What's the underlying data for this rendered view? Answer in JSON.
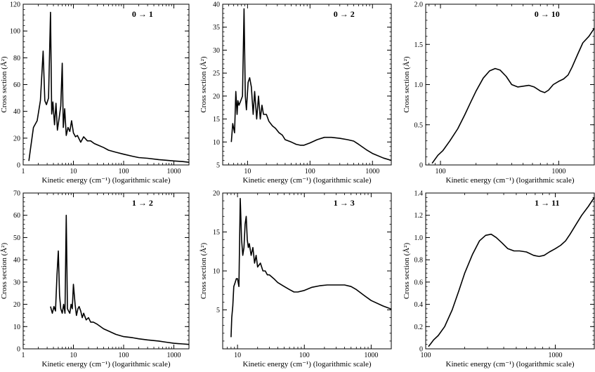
{
  "chart_data": [
    {
      "type": "line",
      "title": "0 → 1",
      "xlabel": "Kinetic energy (cm⁻¹) (logarithmic scale)",
      "ylabel": "Cross section (Å²)",
      "xscale": "log",
      "xlim": [
        1,
        2000
      ],
      "ylim": [
        0,
        120
      ],
      "xticks": [
        1,
        10,
        100,
        1000
      ],
      "yticks": [
        0,
        20,
        40,
        60,
        80,
        100,
        120
      ],
      "xtick_labels": [
        "1",
        "10",
        "100",
        "1000"
      ],
      "ytick_labels": [
        "0",
        "20",
        "40",
        "60",
        "80",
        "100",
        "120"
      ],
      "series": [
        {
          "x": [
            1.3,
            1.4,
            1.6,
            1.9,
            2.2,
            2.5,
            2.7,
            2.9,
            3.2,
            3.5,
            3.7,
            3.9,
            4.2,
            4.5,
            4.8,
            5.2,
            5.6,
            6.0,
            6.3,
            6.7,
            7.2,
            7.8,
            8.5,
            9.2,
            10,
            11,
            12,
            14,
            16,
            19,
            22,
            26,
            30,
            40,
            50,
            70,
            100,
            150,
            200,
            300,
            500,
            700,
            1000,
            1500,
            2000
          ],
          "y": [
            3,
            12,
            28,
            33,
            48,
            85,
            48,
            45,
            50,
            114,
            38,
            47,
            30,
            46,
            26,
            35,
            44,
            76,
            28,
            42,
            22,
            28,
            25,
            33,
            24,
            21,
            22,
            17,
            21,
            18,
            18,
            16,
            15,
            13,
            11,
            9.5,
            8,
            6.5,
            5.5,
            5,
            4,
            3.5,
            3,
            2.5,
            2
          ]
        }
      ],
      "grid": false,
      "legend": "none"
    },
    {
      "type": "line",
      "title": "0 → 2",
      "xlabel": "Kinetic energy (cm⁻¹) (logarithmic scale)",
      "ylabel": "Cross section (Å²)",
      "xscale": "log",
      "xlim": [
        4,
        2000
      ],
      "ylim": [
        5,
        40
      ],
      "xticks": [
        10,
        100,
        1000
      ],
      "yticks": [
        5,
        10,
        15,
        20,
        25,
        30,
        35,
        40
      ],
      "xtick_labels": [
        "10",
        "100",
        "1000"
      ],
      "ytick_labels": [
        "5",
        "10",
        "15",
        "20",
        "25",
        "30",
        "35",
        "40"
      ],
      "series": [
        {
          "x": [
            5.5,
            5.8,
            6.2,
            6.5,
            6.8,
            7.0,
            7.3,
            7.8,
            8.3,
            8.8,
            9.2,
            9.6,
            10.2,
            10.8,
            11.5,
            12.3,
            13,
            14,
            15,
            16,
            17,
            18,
            20,
            22,
            25,
            28,
            32,
            36,
            40,
            50,
            60,
            70,
            80,
            100,
            130,
            170,
            220,
            300,
            400,
            500,
            600,
            800,
            1000,
            1500,
            2000
          ],
          "y": [
            10,
            14,
            12,
            21,
            16,
            19,
            18,
            19,
            20,
            39,
            20,
            17,
            23,
            24,
            22,
            16,
            21,
            15,
            20,
            15,
            18,
            16,
            16,
            14.5,
            13.5,
            13,
            12,
            11.5,
            10.5,
            10,
            9.5,
            9.3,
            9.3,
            9.8,
            10.5,
            11,
            11,
            10.8,
            10.5,
            10.2,
            9.5,
            8.3,
            7.5,
            6.5,
            6
          ]
        }
      ],
      "grid": false,
      "legend": "none"
    },
    {
      "type": "line",
      "title": "0 → 10",
      "xlabel": "Kinetic energy (cm⁻¹) (logarithmic scale)",
      "ylabel": "Cross section (Å²)",
      "xscale": "log",
      "xlim": [
        75,
        2000
      ],
      "ylim": [
        0,
        2.0
      ],
      "xticks": [
        100,
        1000
      ],
      "yticks": [
        0,
        0.5,
        1.0,
        1.5,
        2.0
      ],
      "xtick_labels": [
        "100",
        "1000"
      ],
      "ytick_labels": [
        "0",
        "0.5",
        "1.0",
        "1.5",
        "2.0"
      ],
      "series": [
        {
          "x": [
            85,
            95,
            105,
            120,
            140,
            160,
            180,
            200,
            230,
            260,
            290,
            320,
            360,
            400,
            450,
            500,
            560,
            620,
            700,
            760,
            820,
            900,
            1000,
            1100,
            1200,
            1300,
            1450,
            1600,
            1800,
            2000
          ],
          "y": [
            0.02,
            0.12,
            0.18,
            0.3,
            0.45,
            0.62,
            0.78,
            0.92,
            1.08,
            1.17,
            1.2,
            1.18,
            1.1,
            1.0,
            0.97,
            0.98,
            0.99,
            0.97,
            0.92,
            0.9,
            0.93,
            1.0,
            1.04,
            1.07,
            1.12,
            1.22,
            1.38,
            1.52,
            1.6,
            1.7
          ]
        }
      ],
      "grid": false,
      "legend": "none"
    },
    {
      "type": "line",
      "title": "1 → 2",
      "xlabel": "Kinetic energy (cm⁻¹) (logarithmic scale)",
      "ylabel": "Cross section (Å²)",
      "xscale": "log",
      "xlim": [
        1,
        2000
      ],
      "ylim": [
        0,
        70
      ],
      "xticks": [
        1,
        10,
        100,
        1000
      ],
      "yticks": [
        0,
        10,
        20,
        30,
        40,
        50,
        60,
        70
      ],
      "xtick_labels": [
        "1",
        "10",
        "100",
        "1000"
      ],
      "ytick_labels": [
        "0",
        "10",
        "20",
        "30",
        "40",
        "50",
        "60",
        "70"
      ],
      "series": [
        {
          "x": [
            3.5,
            3.8,
            4.1,
            4.4,
            4.7,
            5.0,
            5.3,
            5.6,
            6.0,
            6.4,
            6.8,
            7.2,
            7.6,
            8.0,
            8.5,
            9.0,
            9.5,
            10,
            10.8,
            11.5,
            12.3,
            13,
            14,
            15,
            16,
            18,
            20,
            22,
            25,
            30,
            40,
            50,
            70,
            100,
            150,
            200,
            300,
            500,
            700,
            1000,
            1500,
            2000
          ],
          "y": [
            19,
            16,
            19,
            17,
            33,
            44,
            24,
            18,
            16,
            20,
            16,
            60,
            18,
            17,
            16,
            20,
            18,
            29,
            20,
            15,
            18,
            19,
            17,
            14,
            16,
            13,
            14,
            12,
            12,
            11,
            9,
            8,
            6.5,
            5.5,
            5,
            4.5,
            4,
            3.5,
            3,
            2.5,
            2.2,
            2
          ]
        }
      ],
      "grid": false,
      "legend": "none"
    },
    {
      "type": "line",
      "title": "1 → 3",
      "xlabel": "Kinetic energy (cm⁻¹) (logarithmic scale)",
      "ylabel": "Cross section (Å²)",
      "xscale": "log",
      "xlim": [
        6,
        2000
      ],
      "ylim": [
        0,
        20
      ],
      "xticks": [
        10,
        100,
        1000
      ],
      "yticks": [
        5,
        10,
        15,
        20
      ],
      "xtick_labels": [
        "10",
        "100",
        "1000"
      ],
      "ytick_labels": [
        "5",
        "10",
        "15",
        "20"
      ],
      "series": [
        {
          "x": [
            8,
            8.2,
            8.5,
            8.8,
            9.2,
            9.6,
            10,
            10.5,
            11,
            11.5,
            12,
            12.5,
            13,
            13.5,
            14,
            14.5,
            15,
            16,
            17,
            18,
            19,
            20,
            22,
            24,
            26,
            28,
            30,
            35,
            40,
            50,
            60,
            70,
            80,
            100,
            130,
            170,
            220,
            300,
            400,
            500,
            600,
            800,
            1000,
            1500,
            2000
          ],
          "y": [
            1.5,
            4,
            5.5,
            8,
            8.5,
            9,
            9,
            8,
            19.3,
            14,
            12,
            13,
            16,
            17,
            14,
            13,
            13.5,
            12,
            13,
            11,
            12,
            10.5,
            11,
            10,
            10,
            9.5,
            9.5,
            9,
            8.5,
            8,
            7.6,
            7.3,
            7.3,
            7.5,
            7.9,
            8.1,
            8.2,
            8.2,
            8.2,
            8.0,
            7.6,
            6.8,
            6.2,
            5.5,
            5.1
          ]
        }
      ],
      "grid": false,
      "legend": "none"
    },
    {
      "type": "line",
      "title": "1 → 11",
      "xlabel": "Kinetic energy (cm⁻¹) (logarithmic scale)",
      "ylabel": "Cross section (Å²)",
      "xscale": "log",
      "xlim": [
        100,
        2000
      ],
      "ylim": [
        0,
        1.4
      ],
      "xticks": [
        100,
        1000
      ],
      "yticks": [
        0,
        0.2,
        0.4,
        0.6,
        0.8,
        1.0,
        1.2,
        1.4
      ],
      "xtick_labels": [
        "100",
        "1000"
      ],
      "ytick_labels": [
        "0",
        "0.2",
        "0.4",
        "0.6",
        "0.8",
        "1.0",
        "1.2",
        "1.4"
      ],
      "series": [
        {
          "x": [
            105,
            110,
            115,
            125,
            140,
            160,
            180,
            200,
            230,
            260,
            290,
            320,
            350,
            390,
            430,
            480,
            530,
            600,
            680,
            750,
            820,
            900,
            1000,
            1100,
            1200,
            1300,
            1450,
            1600,
            1800,
            2000
          ],
          "y": [
            0.02,
            0.05,
            0.08,
            0.12,
            0.2,
            0.35,
            0.52,
            0.68,
            0.85,
            0.97,
            1.02,
            1.03,
            1.0,
            0.95,
            0.9,
            0.88,
            0.88,
            0.87,
            0.84,
            0.83,
            0.84,
            0.87,
            0.9,
            0.93,
            0.97,
            1.03,
            1.12,
            1.2,
            1.28,
            1.36
          ]
        }
      ],
      "grid": false,
      "legend": "none"
    }
  ]
}
